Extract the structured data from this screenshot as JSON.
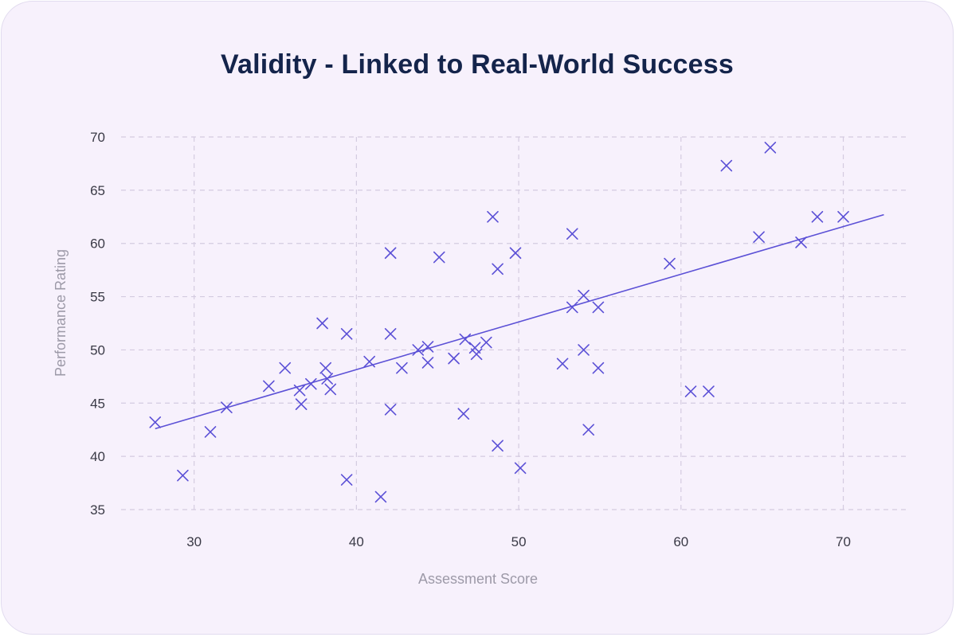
{
  "chart_data": {
    "type": "scatter",
    "title": "Validity - Linked to Real-World Success",
    "xlabel": "Assessment Score",
    "ylabel": "Performance Rating",
    "xlim": [
      25.5,
      74
    ],
    "ylim": [
      35,
      70
    ],
    "x_ticks": [
      30,
      40,
      50,
      60,
      70
    ],
    "y_ticks": [
      35,
      40,
      45,
      50,
      55,
      60,
      65,
      70
    ],
    "grid": true,
    "marker": "x",
    "colors": {
      "points": "#5b50d6",
      "trendline": "#5b50d6",
      "grid": "#d4cbe0"
    },
    "points": [
      {
        "x": 27.6,
        "y": 43.2
      },
      {
        "x": 29.3,
        "y": 38.2
      },
      {
        "x": 31.0,
        "y": 42.3
      },
      {
        "x": 32.0,
        "y": 44.6
      },
      {
        "x": 34.6,
        "y": 46.6
      },
      {
        "x": 35.6,
        "y": 48.3
      },
      {
        "x": 36.5,
        "y": 46.2
      },
      {
        "x": 36.6,
        "y": 44.9
      },
      {
        "x": 37.2,
        "y": 46.8
      },
      {
        "x": 37.9,
        "y": 52.5
      },
      {
        "x": 38.1,
        "y": 48.3
      },
      {
        "x": 38.2,
        "y": 47.3
      },
      {
        "x": 38.4,
        "y": 46.3
      },
      {
        "x": 39.4,
        "y": 51.5
      },
      {
        "x": 39.4,
        "y": 37.8
      },
      {
        "x": 40.8,
        "y": 48.9
      },
      {
        "x": 41.5,
        "y": 36.2
      },
      {
        "x": 42.1,
        "y": 59.1
      },
      {
        "x": 42.1,
        "y": 51.5
      },
      {
        "x": 42.1,
        "y": 44.4
      },
      {
        "x": 42.8,
        "y": 48.3
      },
      {
        "x": 43.8,
        "y": 50.0
      },
      {
        "x": 44.4,
        "y": 50.3
      },
      {
        "x": 44.4,
        "y": 48.8
      },
      {
        "x": 45.1,
        "y": 58.7
      },
      {
        "x": 46.0,
        "y": 49.2
      },
      {
        "x": 46.6,
        "y": 44.0
      },
      {
        "x": 46.7,
        "y": 51.0
      },
      {
        "x": 47.3,
        "y": 50.2
      },
      {
        "x": 47.4,
        "y": 49.6
      },
      {
        "x": 48.0,
        "y": 50.7
      },
      {
        "x": 48.4,
        "y": 62.5
      },
      {
        "x": 48.7,
        "y": 57.6
      },
      {
        "x": 48.7,
        "y": 41.0
      },
      {
        "x": 49.8,
        "y": 59.1
      },
      {
        "x": 50.1,
        "y": 38.9
      },
      {
        "x": 52.7,
        "y": 48.7
      },
      {
        "x": 53.3,
        "y": 60.9
      },
      {
        "x": 53.3,
        "y": 54.0
      },
      {
        "x": 54.0,
        "y": 55.1
      },
      {
        "x": 54.0,
        "y": 50.0
      },
      {
        "x": 54.3,
        "y": 42.5
      },
      {
        "x": 54.9,
        "y": 54.0
      },
      {
        "x": 54.9,
        "y": 48.3
      },
      {
        "x": 59.3,
        "y": 58.1
      },
      {
        "x": 60.6,
        "y": 46.1
      },
      {
        "x": 61.7,
        "y": 46.1
      },
      {
        "x": 62.8,
        "y": 67.3
      },
      {
        "x": 64.8,
        "y": 60.6
      },
      {
        "x": 65.5,
        "y": 69.0
      },
      {
        "x": 67.4,
        "y": 60.1
      },
      {
        "x": 68.4,
        "y": 62.5
      },
      {
        "x": 70.0,
        "y": 62.5
      }
    ],
    "trendline": {
      "x1": 27.6,
      "y1": 42.6,
      "x2": 72.5,
      "y2": 62.7
    }
  }
}
